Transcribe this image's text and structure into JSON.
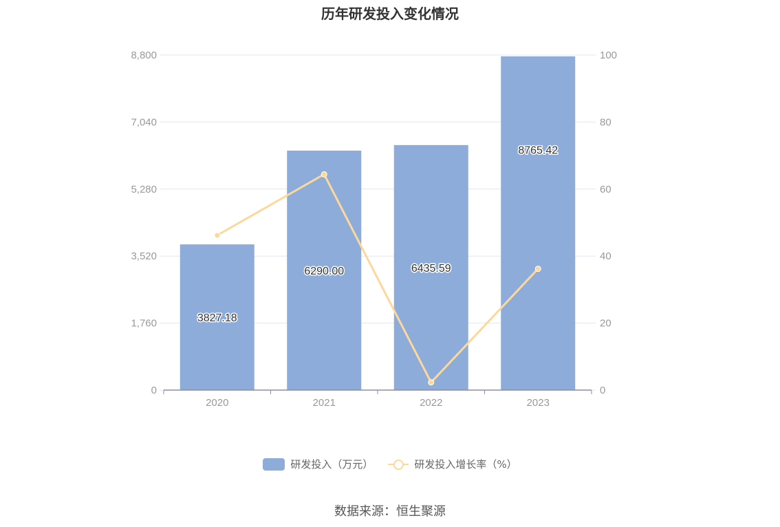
{
  "title": "历年研发投入变化情况",
  "source": "数据来源：恒生聚源",
  "colors": {
    "bar": "#8eacd9",
    "line": "#fcd89b",
    "grid": "#e3e6f2",
    "axis": "#999999"
  },
  "legend": {
    "bar_label": "研发投入（万元）",
    "line_label": "研发投入增长率（%）"
  },
  "chart_data": {
    "type": "bar",
    "categories": [
      "2020",
      "2021",
      "2022",
      "2023"
    ],
    "series": [
      {
        "name": "研发投入（万元）",
        "type": "bar",
        "axis": "left",
        "values": [
          3827.18,
          6290.0,
          6435.59,
          8765.42
        ],
        "labels": [
          "3827.18",
          "6290.00",
          "6435.59",
          "8765.42"
        ]
      },
      {
        "name": "研发投入增长率（%）",
        "type": "line",
        "axis": "right",
        "values": [
          46.2,
          64.4,
          2.3,
          36.2
        ]
      }
    ],
    "y_left": {
      "min": 0,
      "max": 8800,
      "ticks": [
        "0",
        "1,760",
        "3,520",
        "5,280",
        "7,040",
        "8,800"
      ]
    },
    "y_right": {
      "min": 0,
      "max": 100,
      "ticks": [
        "0",
        "20",
        "40",
        "60",
        "80",
        "100"
      ]
    },
    "grid": true,
    "legend_position": "bottom"
  }
}
